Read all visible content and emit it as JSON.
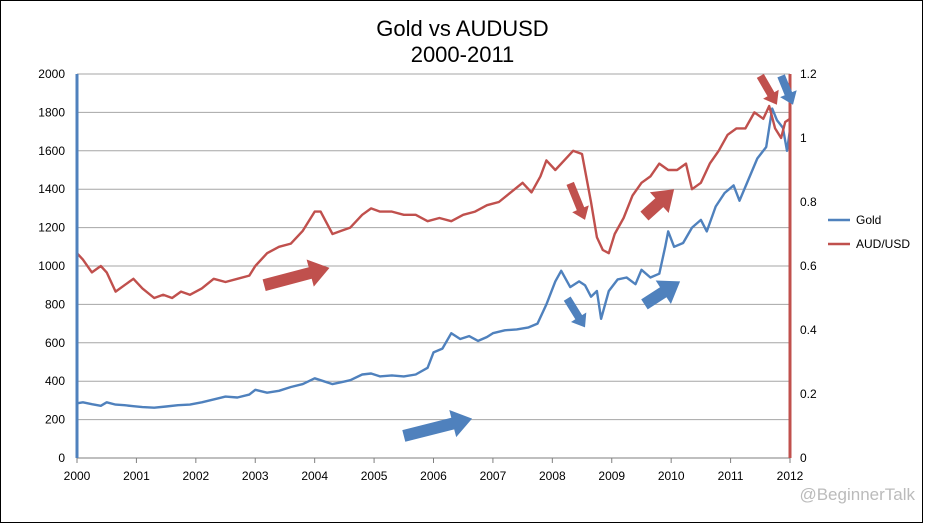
{
  "chart_data": {
    "type": "line",
    "title_line1": "Gold vs AUDUSD",
    "title_line2": "2000-2011",
    "xlim": [
      2000,
      2012
    ],
    "x_ticks": [
      "2000",
      "2001",
      "2002",
      "2003",
      "2004",
      "2005",
      "2006",
      "2007",
      "2008",
      "2009",
      "2010",
      "2011",
      "2012"
    ],
    "y_left": {
      "lim": [
        0,
        2000
      ],
      "ticks": [
        "0",
        "200",
        "400",
        "600",
        "800",
        "1000",
        "1200",
        "1400",
        "1600",
        "1800",
        "2000"
      ]
    },
    "y_right": {
      "lim": [
        0,
        1.2
      ],
      "ticks": [
        "0",
        "0.2",
        "0.4",
        "0.6",
        "0.8",
        "1",
        "1.2"
      ]
    },
    "grid": "horizontal",
    "legend_position": "right",
    "series": [
      {
        "name": "Gold",
        "axis": "left",
        "color": "#4f81bd",
        "points": [
          [
            2000.0,
            285
          ],
          [
            2000.1,
            290
          ],
          [
            2000.25,
            280
          ],
          [
            2000.4,
            272
          ],
          [
            2000.5,
            290
          ],
          [
            2000.65,
            278
          ],
          [
            2000.8,
            275
          ],
          [
            2000.95,
            270
          ],
          [
            2001.1,
            265
          ],
          [
            2001.3,
            262
          ],
          [
            2001.5,
            268
          ],
          [
            2001.7,
            275
          ],
          [
            2001.9,
            278
          ],
          [
            2002.1,
            290
          ],
          [
            2002.3,
            305
          ],
          [
            2002.5,
            320
          ],
          [
            2002.7,
            315
          ],
          [
            2002.9,
            330
          ],
          [
            2003.0,
            355
          ],
          [
            2003.2,
            340
          ],
          [
            2003.4,
            350
          ],
          [
            2003.6,
            370
          ],
          [
            2003.8,
            385
          ],
          [
            2004.0,
            415
          ],
          [
            2004.15,
            400
          ],
          [
            2004.3,
            385
          ],
          [
            2004.45,
            395
          ],
          [
            2004.6,
            405
          ],
          [
            2004.8,
            435
          ],
          [
            2004.95,
            440
          ],
          [
            2005.1,
            425
          ],
          [
            2005.3,
            430
          ],
          [
            2005.5,
            425
          ],
          [
            2005.7,
            435
          ],
          [
            2005.9,
            470
          ],
          [
            2006.0,
            550
          ],
          [
            2006.15,
            570
          ],
          [
            2006.3,
            650
          ],
          [
            2006.45,
            620
          ],
          [
            2006.6,
            635
          ],
          [
            2006.75,
            610
          ],
          [
            2006.9,
            630
          ],
          [
            2007.0,
            650
          ],
          [
            2007.2,
            665
          ],
          [
            2007.4,
            670
          ],
          [
            2007.6,
            680
          ],
          [
            2007.75,
            700
          ],
          [
            2007.9,
            800
          ],
          [
            2008.05,
            920
          ],
          [
            2008.15,
            975
          ],
          [
            2008.3,
            890
          ],
          [
            2008.45,
            920
          ],
          [
            2008.55,
            900
          ],
          [
            2008.65,
            840
          ],
          [
            2008.75,
            870
          ],
          [
            2008.82,
            725
          ],
          [
            2008.95,
            870
          ],
          [
            2009.1,
            930
          ],
          [
            2009.25,
            940
          ],
          [
            2009.4,
            905
          ],
          [
            2009.5,
            980
          ],
          [
            2009.65,
            940
          ],
          [
            2009.8,
            960
          ],
          [
            2009.9,
            1100
          ],
          [
            2009.95,
            1180
          ],
          [
            2010.05,
            1100
          ],
          [
            2010.2,
            1120
          ],
          [
            2010.35,
            1200
          ],
          [
            2010.5,
            1240
          ],
          [
            2010.6,
            1180
          ],
          [
            2010.75,
            1310
          ],
          [
            2010.9,
            1380
          ],
          [
            2011.05,
            1420
          ],
          [
            2011.15,
            1340
          ],
          [
            2011.3,
            1450
          ],
          [
            2011.45,
            1560
          ],
          [
            2011.6,
            1620
          ],
          [
            2011.7,
            1820
          ],
          [
            2011.78,
            1760
          ],
          [
            2011.88,
            1720
          ],
          [
            2011.95,
            1600
          ],
          [
            2012.0,
            1710
          ]
        ]
      },
      {
        "name": "AUD/USD",
        "axis": "right",
        "color": "#c0504d",
        "points": [
          [
            2000.0,
            0.64
          ],
          [
            2000.1,
            0.62
          ],
          [
            2000.25,
            0.58
          ],
          [
            2000.4,
            0.6
          ],
          [
            2000.5,
            0.58
          ],
          [
            2000.65,
            0.52
          ],
          [
            2000.8,
            0.54
          ],
          [
            2000.95,
            0.56
          ],
          [
            2001.1,
            0.53
          ],
          [
            2001.3,
            0.5
          ],
          [
            2001.45,
            0.51
          ],
          [
            2001.6,
            0.5
          ],
          [
            2001.75,
            0.52
          ],
          [
            2001.9,
            0.51
          ],
          [
            2002.1,
            0.53
          ],
          [
            2002.3,
            0.56
          ],
          [
            2002.5,
            0.55
          ],
          [
            2002.7,
            0.56
          ],
          [
            2002.9,
            0.57
          ],
          [
            2003.0,
            0.6
          ],
          [
            2003.2,
            0.64
          ],
          [
            2003.4,
            0.66
          ],
          [
            2003.6,
            0.67
          ],
          [
            2003.8,
            0.71
          ],
          [
            2004.0,
            0.77
          ],
          [
            2004.1,
            0.77
          ],
          [
            2004.3,
            0.7
          ],
          [
            2004.45,
            0.71
          ],
          [
            2004.6,
            0.72
          ],
          [
            2004.8,
            0.76
          ],
          [
            2004.95,
            0.78
          ],
          [
            2005.1,
            0.77
          ],
          [
            2005.3,
            0.77
          ],
          [
            2005.5,
            0.76
          ],
          [
            2005.7,
            0.76
          ],
          [
            2005.9,
            0.74
          ],
          [
            2006.1,
            0.75
          ],
          [
            2006.3,
            0.74
          ],
          [
            2006.5,
            0.76
          ],
          [
            2006.7,
            0.77
          ],
          [
            2006.9,
            0.79
          ],
          [
            2007.1,
            0.8
          ],
          [
            2007.3,
            0.83
          ],
          [
            2007.5,
            0.86
          ],
          [
            2007.65,
            0.83
          ],
          [
            2007.8,
            0.88
          ],
          [
            2007.9,
            0.93
          ],
          [
            2008.05,
            0.9
          ],
          [
            2008.2,
            0.93
          ],
          [
            2008.35,
            0.96
          ],
          [
            2008.5,
            0.95
          ],
          [
            2008.65,
            0.8
          ],
          [
            2008.75,
            0.69
          ],
          [
            2008.85,
            0.65
          ],
          [
            2008.95,
            0.64
          ],
          [
            2009.05,
            0.7
          ],
          [
            2009.2,
            0.75
          ],
          [
            2009.35,
            0.82
          ],
          [
            2009.5,
            0.86
          ],
          [
            2009.65,
            0.88
          ],
          [
            2009.8,
            0.92
          ],
          [
            2009.95,
            0.9
          ],
          [
            2010.1,
            0.9
          ],
          [
            2010.25,
            0.92
          ],
          [
            2010.35,
            0.84
          ],
          [
            2010.5,
            0.86
          ],
          [
            2010.65,
            0.92
          ],
          [
            2010.8,
            0.96
          ],
          [
            2010.95,
            1.01
          ],
          [
            2011.1,
            1.03
          ],
          [
            2011.25,
            1.03
          ],
          [
            2011.4,
            1.08
          ],
          [
            2011.55,
            1.06
          ],
          [
            2011.65,
            1.1
          ],
          [
            2011.75,
            1.03
          ],
          [
            2011.85,
            1.0
          ],
          [
            2011.92,
            1.05
          ],
          [
            2012.0,
            1.06
          ]
        ]
      }
    ],
    "annotations": [
      {
        "type": "arrow",
        "color": "#c0504d",
        "from": [
          2003.15,
          900
        ],
        "to": [
          2004.25,
          990
        ],
        "desc": "aud-up-arrow-2003"
      },
      {
        "type": "arrow",
        "color": "#4f81bd",
        "from": [
          2005.5,
          115
        ],
        "to": [
          2006.65,
          205
        ],
        "desc": "gold-up-arrow-2005"
      },
      {
        "type": "arrow",
        "color": "#c0504d",
        "from": [
          2008.3,
          1430
        ],
        "to": [
          2008.55,
          1240
        ],
        "desc": "aud-down-arrow-2008"
      },
      {
        "type": "arrow",
        "color": "#4f81bd",
        "from": [
          2008.25,
          830
        ],
        "to": [
          2008.55,
          680
        ],
        "desc": "gold-down-arrow-2008"
      },
      {
        "type": "arrow",
        "color": "#4f81bd",
        "from": [
          2009.55,
          800
        ],
        "to": [
          2010.15,
          920
        ],
        "desc": "gold-up-arrow-2009"
      },
      {
        "type": "arrow",
        "color": "#c0504d",
        "from": [
          2009.55,
          1260
        ],
        "to": [
          2010.05,
          1400
        ],
        "desc": "aud-up-arrow-2009"
      },
      {
        "type": "arrow",
        "color": "#c0504d",
        "from": [
          2011.5,
          1990
        ],
        "to": [
          2011.78,
          1840
        ],
        "desc": "aud-down-arrow-2011"
      },
      {
        "type": "arrow",
        "color": "#4f81bd",
        "from": [
          2011.85,
          1990
        ],
        "to": [
          2012.05,
          1840
        ],
        "desc": "gold-down-arrow-2011"
      }
    ]
  },
  "watermark": "@BeginnerTalk"
}
